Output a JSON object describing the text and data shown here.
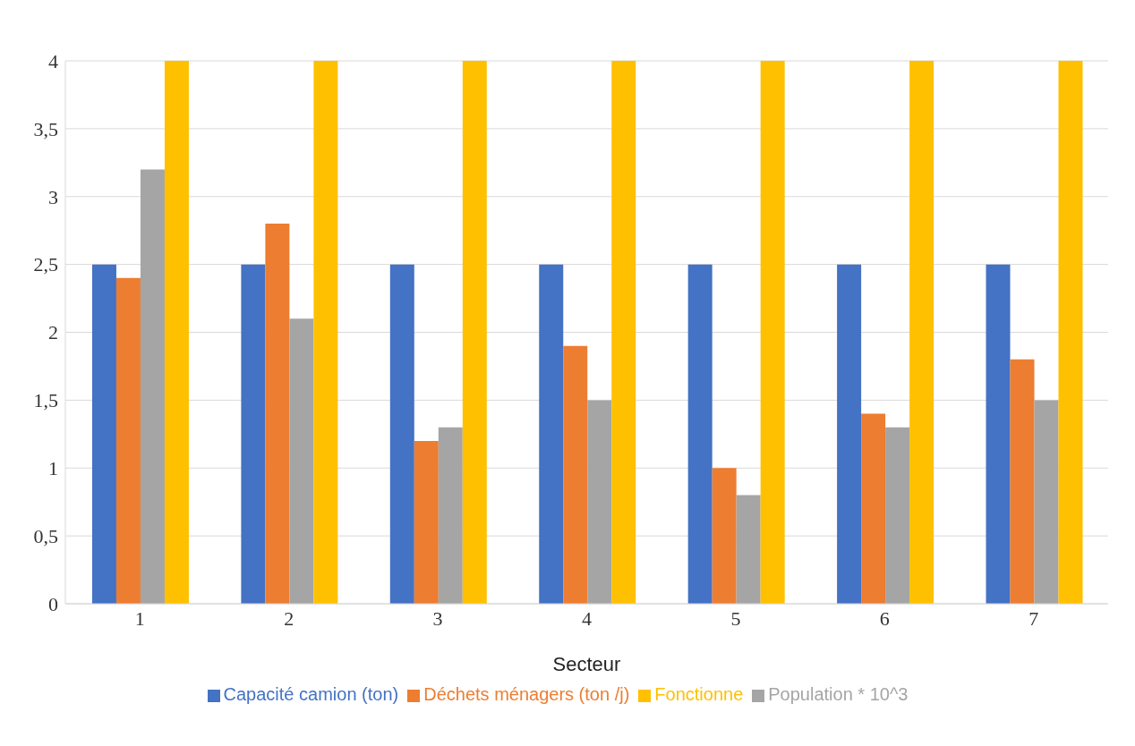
{
  "chart_data": {
    "type": "bar",
    "xlabel": "Secteur",
    "categories": [
      "1",
      "2",
      "3",
      "4",
      "5",
      "6",
      "7"
    ],
    "series": [
      {
        "name": "Capacité camion (ton)",
        "color": "#4472c4",
        "values": [
          2.5,
          2.5,
          2.5,
          2.5,
          2.5,
          2.5,
          2.5
        ]
      },
      {
        "name": "Déchets ménagers (ton /j)",
        "color": "#ed7d31",
        "values": [
          2.4,
          2.8,
          1.2,
          1.9,
          1.0,
          1.4,
          1.8
        ]
      },
      {
        "name": "Population * 10^3",
        "color": "#a5a5a5",
        "values": [
          3.2,
          2.1,
          1.3,
          1.5,
          0.8,
          1.3,
          1.5
        ]
      },
      {
        "name": "Fonctionne",
        "color": "#ffc000",
        "values": [
          4,
          4,
          4,
          4,
          4,
          4,
          4
        ]
      }
    ],
    "ylim": [
      0,
      4
    ],
    "yticks": [
      0,
      {
        "value": 0.5,
        "label": "0,5"
      },
      1,
      {
        "value": 1.5,
        "label": "1,5"
      },
      2,
      {
        "value": 2.5,
        "label": "2,5"
      },
      3,
      {
        "value": 3.5,
        "label": "3,5"
      },
      4
    ],
    "grid": "y",
    "legend": "bottom"
  }
}
